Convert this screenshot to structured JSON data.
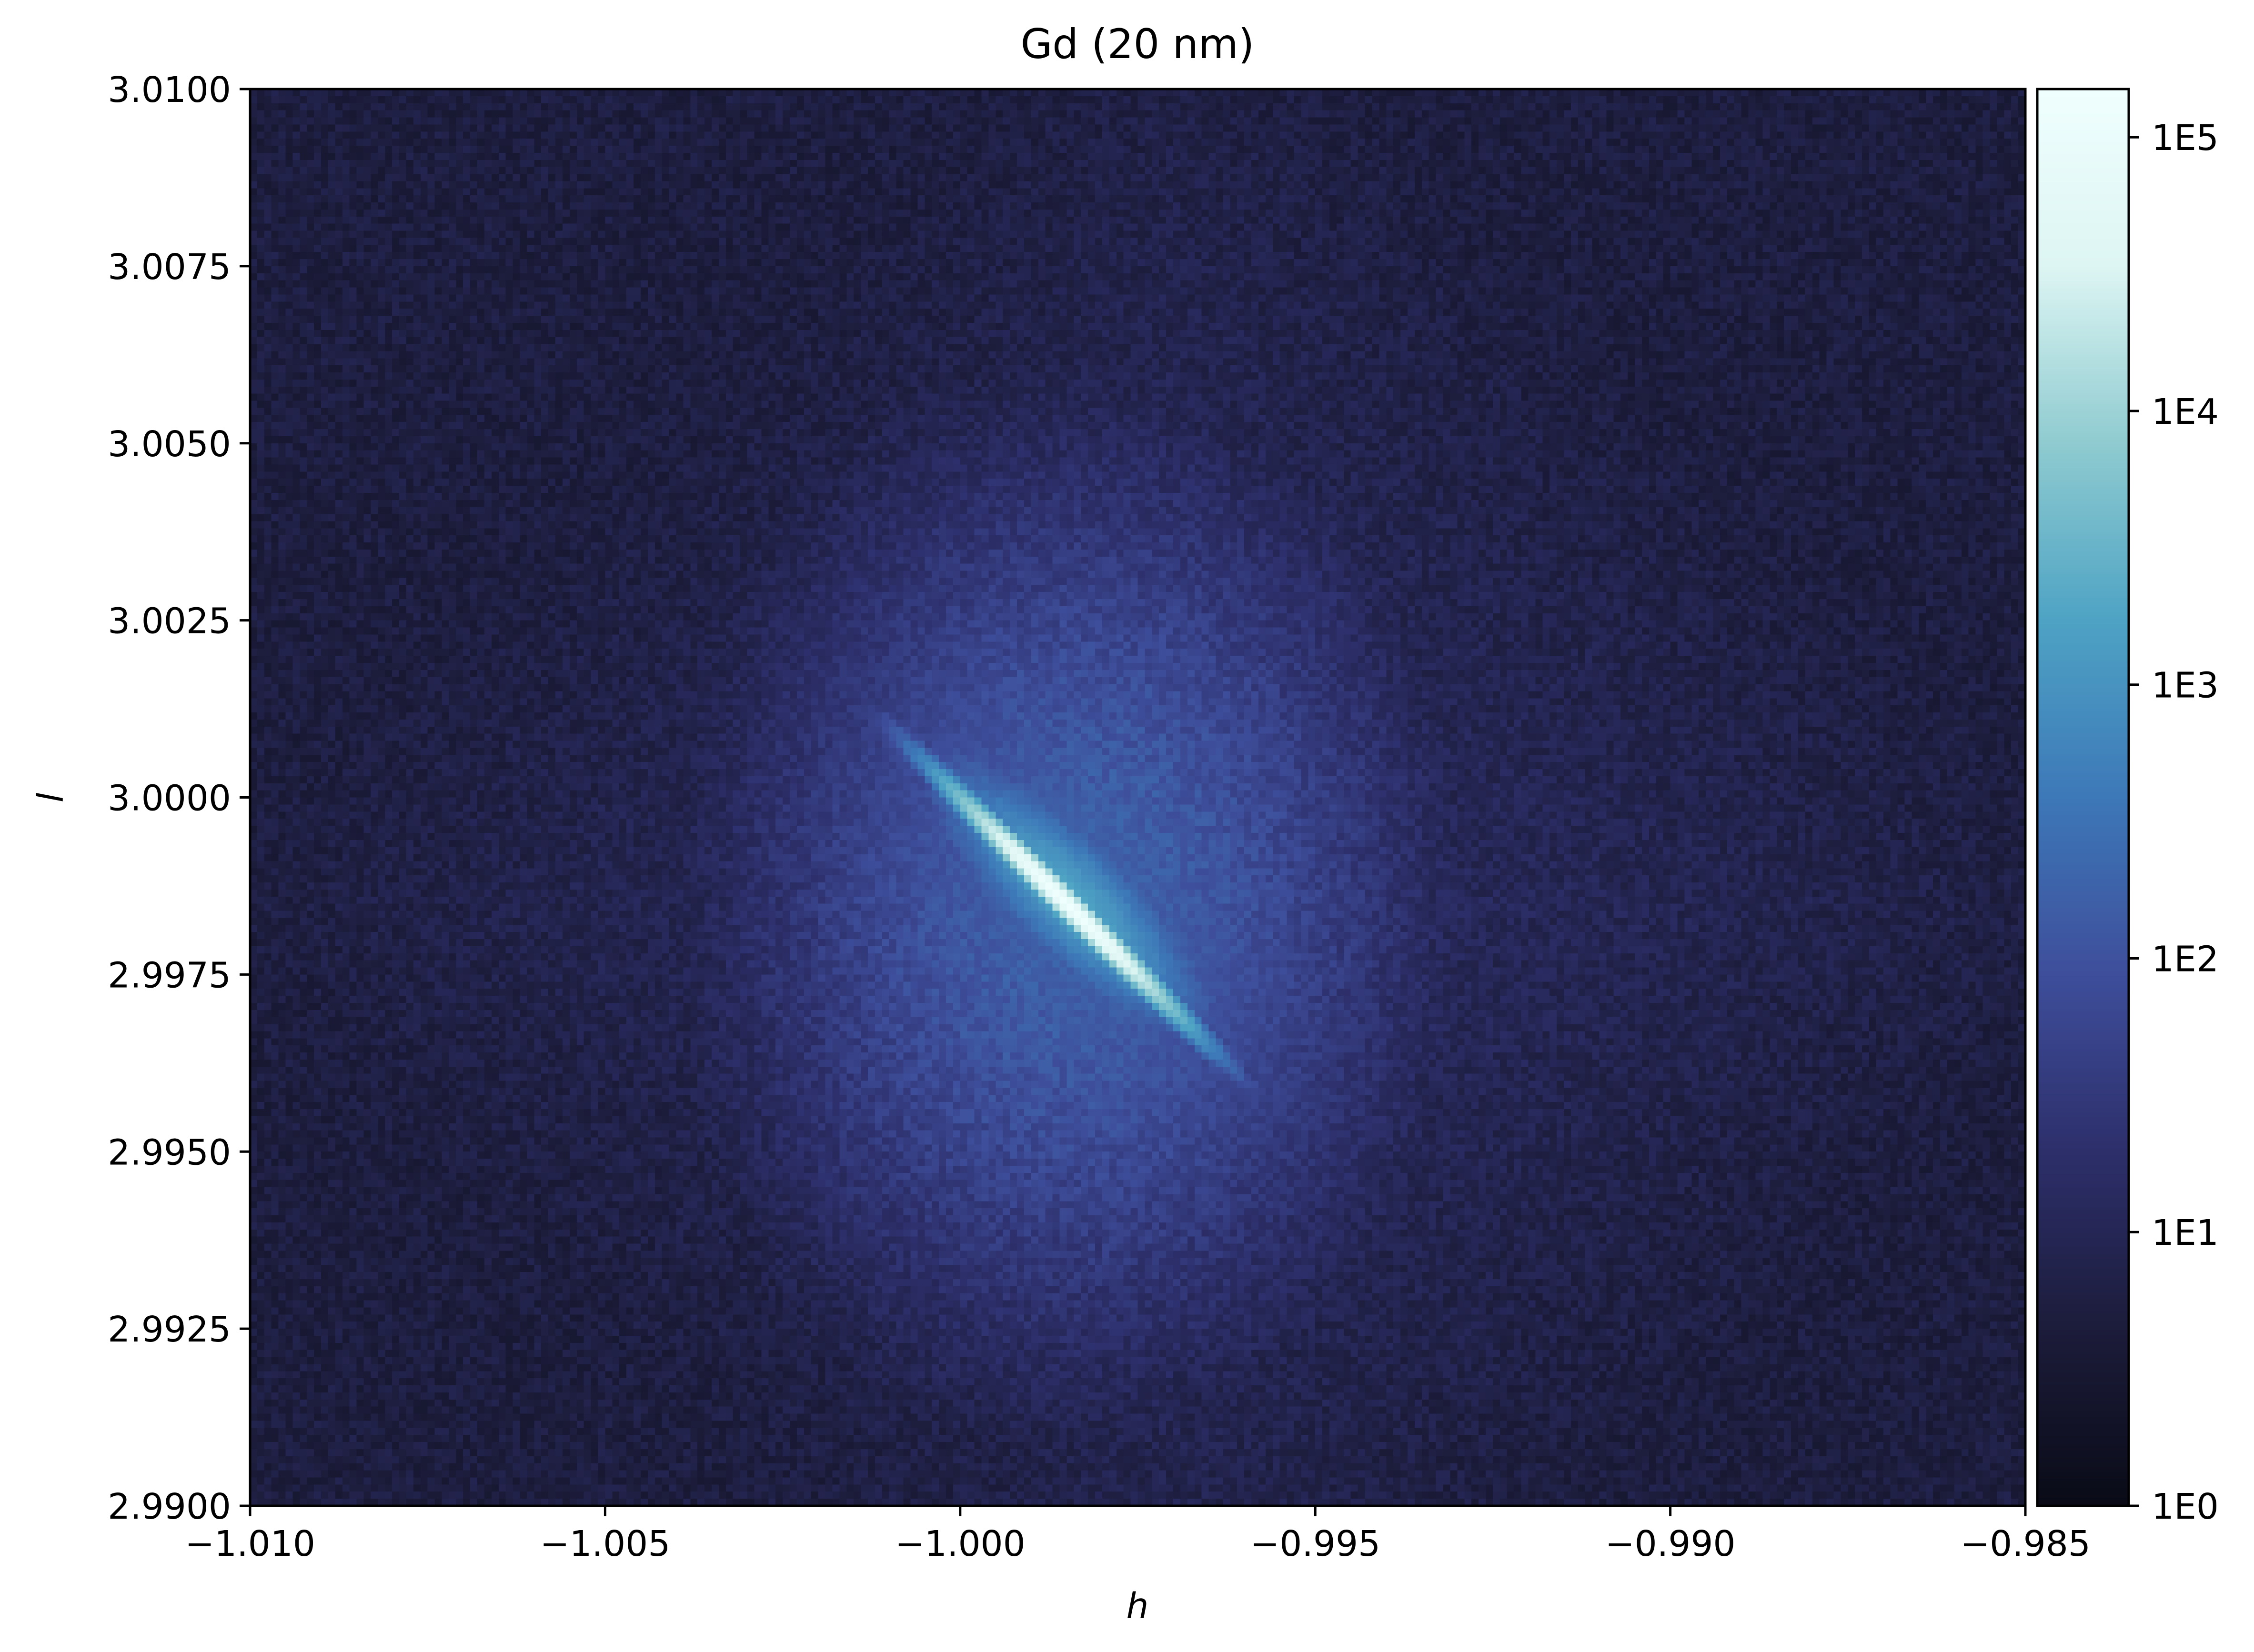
{
  "chart_data": {
    "type": "heatmap",
    "title": "Gd (20 nm)",
    "xlabel": "h",
    "ylabel": "l",
    "xlim": [
      -1.01,
      -0.985
    ],
    "ylim": [
      2.99,
      3.01
    ],
    "x_ticks": [
      -1.01,
      -1.005,
      -1.0,
      -0.995,
      -0.99,
      -0.985
    ],
    "x_tick_labels": [
      "−1.010",
      "−1.005",
      "−1.000",
      "−0.995",
      "−0.990",
      "−0.985"
    ],
    "y_ticks": [
      2.99,
      2.9925,
      2.995,
      2.9975,
      3.0,
      3.0025,
      3.005,
      3.0075,
      3.01
    ],
    "y_tick_labels": [
      "2.9900",
      "2.9925",
      "2.9950",
      "2.9975",
      "3.0000",
      "3.0025",
      "3.0050",
      "3.0075",
      "3.0100"
    ],
    "colorbar": {
      "scale": "log",
      "range": [
        1,
        150000
      ],
      "ticks": [
        1,
        10,
        100,
        1000,
        10000,
        100000
      ],
      "tick_labels": [
        "1E0",
        "1E1",
        "1E2",
        "1E3",
        "1E4",
        "1E5"
      ]
    },
    "colormap": [
      "#0a0b17",
      "#1c1c3b",
      "#2d2f6b",
      "#3e4e9b",
      "#3d78b8",
      "#4ea3c4",
      "#8fcbd0",
      "#ddf5f3",
      "#effffe"
    ],
    "peak": {
      "h": -0.9985,
      "l": 2.9985,
      "max_intensity": 150000
    },
    "grid": false
  }
}
